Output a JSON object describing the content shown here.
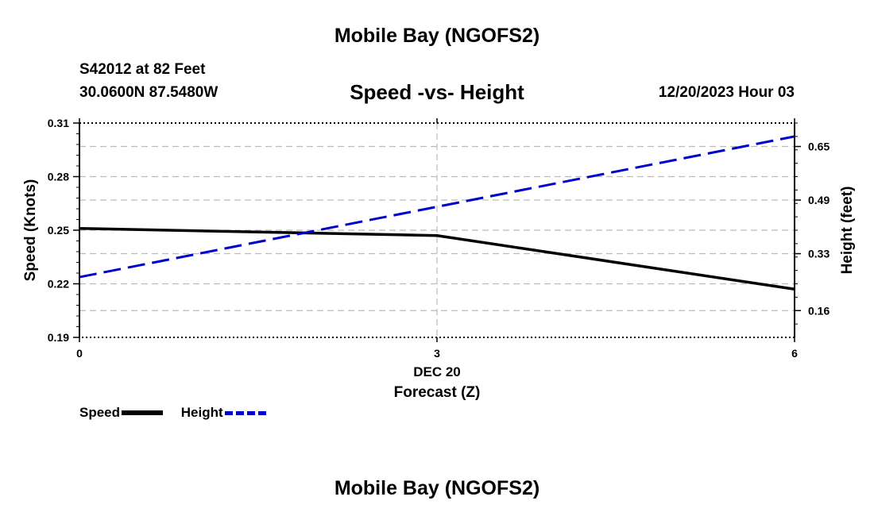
{
  "header": {
    "title_top": "Mobile Bay (NGOFS2)",
    "station": "S42012 at 82 Feet",
    "coords": "30.0600N  87.5480W",
    "datetime": "12/20/2023 Hour 03",
    "title_bottom": "Mobile Bay (NGOFS2)"
  },
  "chart_data": {
    "type": "line",
    "title": "Speed -vs- Height",
    "xlabel": "Forecast (Z)",
    "xsublabel": "DEC 20",
    "ylabel": "Speed (Knots)",
    "y2label": "Height (feet)",
    "x_ticks": [
      "0",
      "3",
      "6"
    ],
    "xlim": [
      0,
      6
    ],
    "ylim": [
      0.19,
      0.31
    ],
    "y_ticks": [
      "0.31",
      "0.28",
      "0.25",
      "0.22",
      "0.19"
    ],
    "y2lim": [
      0.08,
      0.72
    ],
    "y2_ticks": [
      "0.65",
      "0.49",
      "0.33",
      "0.16"
    ],
    "series": [
      {
        "name": "Speed",
        "axis": "left",
        "color": "#000000",
        "style": "solid",
        "x": [
          0,
          3,
          6
        ],
        "values": [
          0.251,
          0.247,
          0.217
        ]
      },
      {
        "name": "Height",
        "axis": "right",
        "color": "#0000cc",
        "style": "dashed",
        "x": [
          0,
          6
        ],
        "values": [
          0.26,
          0.68
        ]
      }
    ],
    "grid": true,
    "legend": [
      "Speed",
      "Height"
    ]
  }
}
